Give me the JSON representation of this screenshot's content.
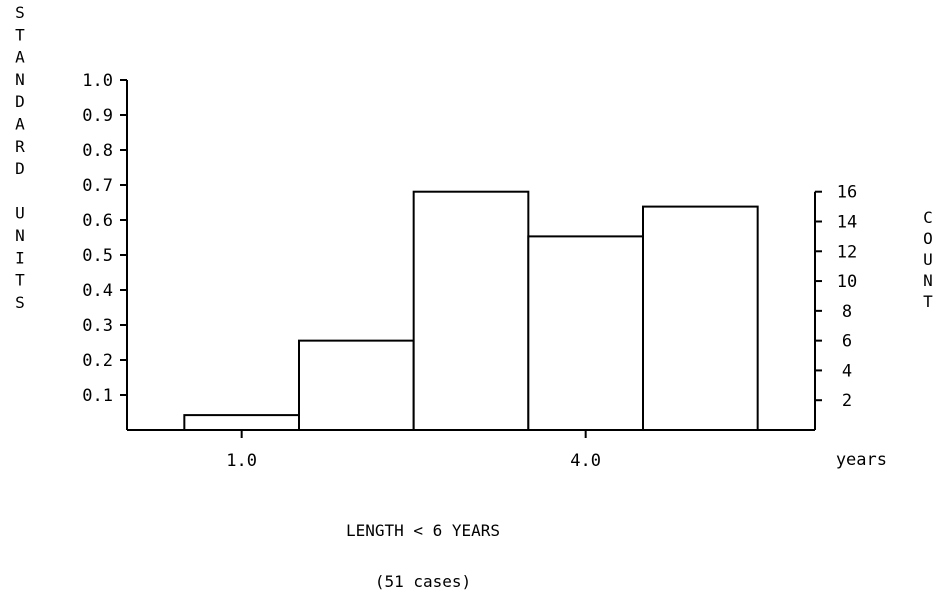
{
  "chart_data": {
    "type": "bar",
    "bins": [
      {
        "start": 0.5,
        "end": 1.5,
        "count": 1
      },
      {
        "start": 1.5,
        "end": 2.5,
        "count": 6
      },
      {
        "start": 2.5,
        "end": 3.5,
        "count": 16
      },
      {
        "start": 3.5,
        "end": 4.5,
        "count": 13
      },
      {
        "start": 4.5,
        "end": 5.5,
        "count": 15
      }
    ],
    "xlim": [
      0.0,
      6.0
    ],
    "x_ticks": [
      1.0,
      4.0
    ],
    "x_tick_labels": [
      "1.0",
      "4.0"
    ],
    "x_unit": "years",
    "left_axis": {
      "label_letters": [
        "S",
        "T",
        "A",
        "N",
        "D",
        "A",
        "R",
        "D",
        "",
        "U",
        "N",
        "I",
        "T",
        "S"
      ],
      "ylim": [
        0,
        1.0
      ],
      "ticks": [
        0.1,
        0.2,
        0.3,
        0.4,
        0.5,
        0.6,
        0.7,
        0.8,
        0.9,
        1.0
      ],
      "tick_labels": [
        "0.1",
        "0.2",
        "0.3",
        "0.4",
        "0.5",
        "0.6",
        "0.7",
        "0.8",
        "0.9",
        "1.0"
      ]
    },
    "right_axis": {
      "label_letters": [
        "C",
        "O",
        "U",
        "N",
        "T"
      ],
      "ylim": [
        0,
        23.5
      ],
      "ticks": [
        2,
        4,
        6,
        8,
        10,
        12,
        14,
        16
      ],
      "tick_labels": [
        "2",
        "4",
        "6",
        "8",
        "10",
        "12",
        "14",
        "16"
      ]
    },
    "title": "LENGTH < 6 YEARS",
    "subtitle": "(51 cases)",
    "grid": false
  }
}
